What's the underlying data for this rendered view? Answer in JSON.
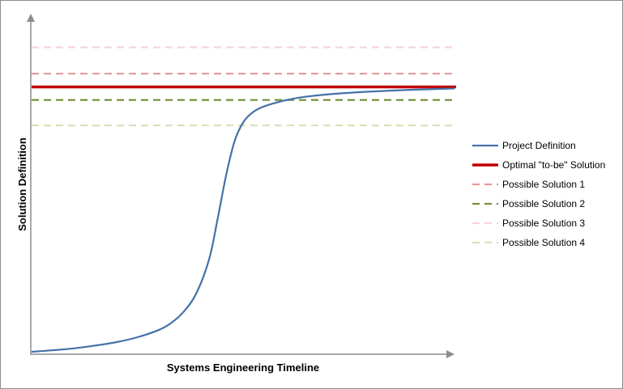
{
  "chart_data": {
    "type": "line",
    "title": "",
    "xlabel": "Systems Engineering Timeline",
    "ylabel": "Solution Definition",
    "xlim": [
      0,
      1
    ],
    "ylim": [
      0,
      1
    ],
    "grid": false,
    "legend_position": "right",
    "series": [
      {
        "name": "Project Definition",
        "kind": "curve",
        "color": "#4472a8",
        "dash": "solid",
        "x": [
          0,
          0.05,
          0.1,
          0.15,
          0.2,
          0.25,
          0.3,
          0.33,
          0.36,
          0.39,
          0.42,
          0.44,
          0.46,
          0.48,
          0.5,
          0.52,
          0.54,
          0.56,
          0.58,
          0.6,
          0.64,
          0.7,
          0.8,
          0.9,
          1.0
        ],
        "values": [
          0.0,
          0.005,
          0.011,
          0.02,
          0.031,
          0.047,
          0.07,
          0.093,
          0.13,
          0.19,
          0.3,
          0.43,
          0.57,
          0.68,
          0.74,
          0.77,
          0.787,
          0.797,
          0.805,
          0.812,
          0.822,
          0.831,
          0.84,
          0.846,
          0.85
        ]
      },
      {
        "name": "Optimal \"to-be\" Solution",
        "kind": "level",
        "value": 0.855,
        "color": "#c00000",
        "dash": "solid"
      },
      {
        "name": "Possible Solution 1",
        "kind": "level",
        "value": 0.898,
        "color": "#e6999a",
        "dash": "dashed"
      },
      {
        "name": "Possible Solution 2",
        "kind": "level",
        "value": 0.813,
        "color": "#76923c",
        "dash": "dashed"
      },
      {
        "name": "Possible Solution 3",
        "kind": "level",
        "value": 0.983,
        "color": "#f5d5dc",
        "dash": "dashed"
      },
      {
        "name": "Possible Solution 4",
        "kind": "level",
        "value": 0.731,
        "color": "#d6e3bc",
        "dash": "dashed"
      }
    ]
  }
}
